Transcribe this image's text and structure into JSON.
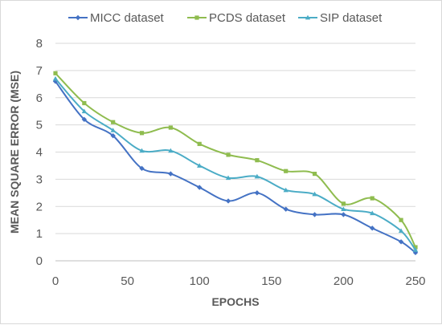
{
  "chart_data": {
    "type": "line",
    "title": "",
    "xlabel": "EPOCHS",
    "ylabel": "MEAN SQUARE ERROR (MSE)",
    "xlim": [
      0,
      250
    ],
    "ylim": [
      0,
      8
    ],
    "x_ticks": [
      0,
      50,
      100,
      150,
      200,
      250
    ],
    "y_ticks": [
      0,
      1,
      2,
      3,
      4,
      5,
      6,
      7,
      8
    ],
    "grid": "horizontal",
    "legend_position": "top",
    "x": [
      0,
      20,
      40,
      60,
      80,
      100,
      120,
      140,
      160,
      180,
      200,
      220,
      240,
      250
    ],
    "series": [
      {
        "name": "MICC dataset",
        "color": "#4472c4",
        "marker": "diamond",
        "values": [
          6.6,
          5.2,
          4.6,
          3.4,
          3.2,
          2.7,
          2.2,
          2.5,
          1.9,
          1.7,
          1.7,
          1.2,
          0.7,
          0.3
        ]
      },
      {
        "name": "PCDS dataset",
        "color": "#8fbc4f",
        "marker": "square",
        "values": [
          6.9,
          5.8,
          5.1,
          4.7,
          4.9,
          4.3,
          3.9,
          3.7,
          3.3,
          3.2,
          2.1,
          2.3,
          1.5,
          0.5
        ]
      },
      {
        "name": "SIP dataset",
        "color": "#4bacc6",
        "marker": "triangle",
        "values": [
          6.7,
          5.5,
          4.8,
          4.05,
          4.05,
          3.5,
          3.05,
          3.1,
          2.6,
          2.45,
          1.9,
          1.75,
          1.1,
          0.4
        ]
      }
    ]
  }
}
